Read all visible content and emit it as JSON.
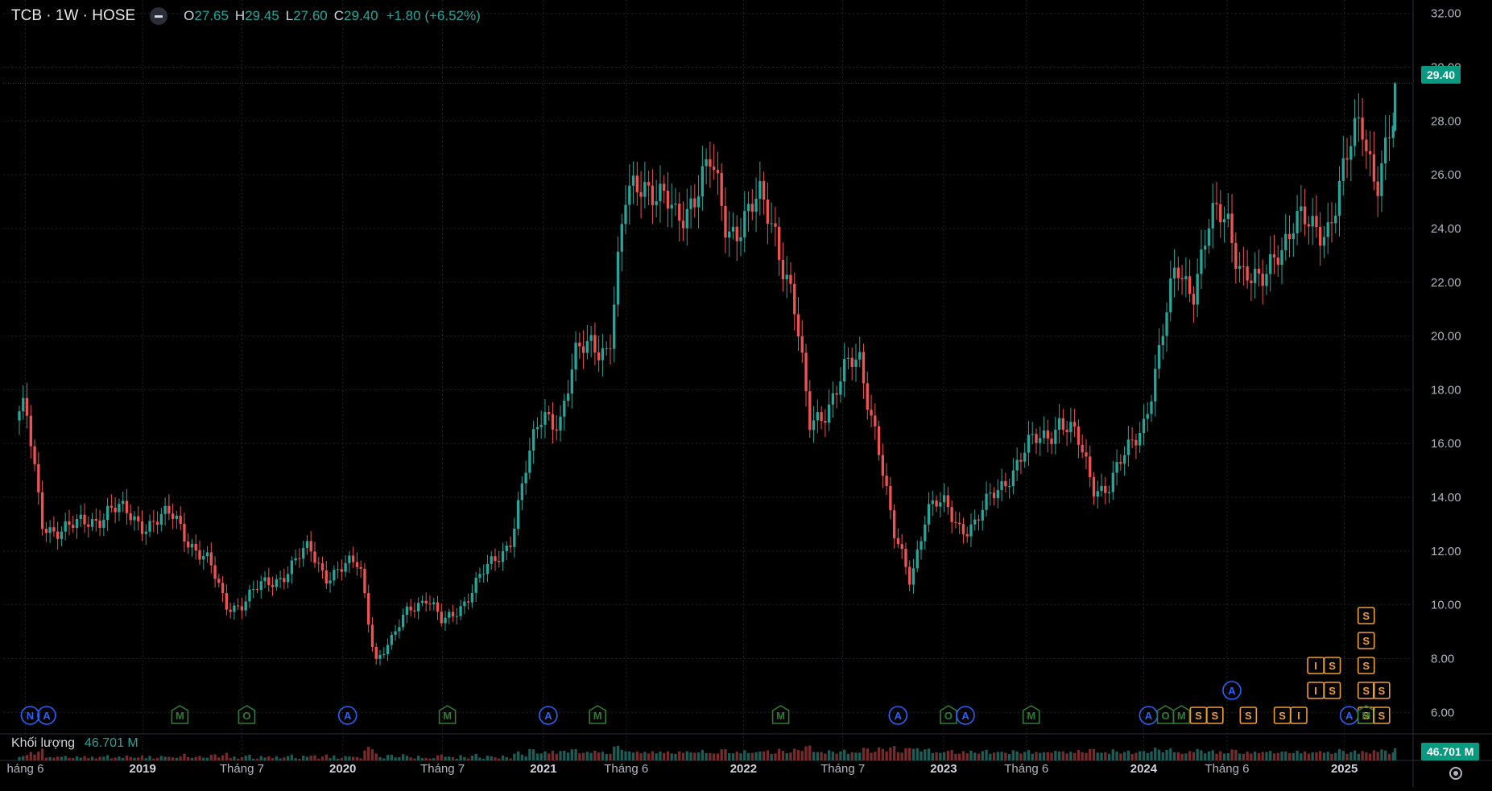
{
  "header": {
    "symbol": "TCB · 1W · HOSE",
    "o_label": "O",
    "o_value": "27.65",
    "h_label": "H",
    "h_value": "29.45",
    "l_label": "L",
    "l_value": "27.60",
    "c_label": "C",
    "c_value": "29.40",
    "change": "+1.80 (+6.52%)"
  },
  "volume": {
    "label": "Khối lượng",
    "value": "46.701 M"
  },
  "price_badge": "29.40",
  "volume_badge": "46.701 M",
  "colors": {
    "up": "#26a69a",
    "down": "#ef5350",
    "background": "#000000",
    "grid": "#1f2226",
    "badge": "#089981",
    "event_blue": "#2962ff",
    "event_green": "#2e7d32",
    "event_orange": "#f0a030"
  },
  "chart_data": {
    "type": "candlestick",
    "interval": "1W",
    "ylim": [
      5.2,
      32.5
    ],
    "y_ticks": [
      "6.00",
      "8.00",
      "10.00",
      "12.00",
      "14.00",
      "16.00",
      "18.00",
      "20.00",
      "22.00",
      "24.00",
      "26.00",
      "28.00",
      "30.00",
      "32.00"
    ],
    "x_ticks": [
      {
        "label": "háng 6",
        "date": "2018-06",
        "bold": false
      },
      {
        "label": "2019",
        "date": "2019-01",
        "bold": true
      },
      {
        "label": "Tháng 7",
        "date": "2019-07",
        "bold": false
      },
      {
        "label": "2020",
        "date": "2020-01",
        "bold": true
      },
      {
        "label": "Tháng 7",
        "date": "2020-07",
        "bold": false
      },
      {
        "label": "2021",
        "date": "2021-01",
        "bold": true
      },
      {
        "label": "Tháng 6",
        "date": "2021-06",
        "bold": false
      },
      {
        "label": "2022",
        "date": "2022-01",
        "bold": true
      },
      {
        "label": "Tháng 7",
        "date": "2022-07",
        "bold": false
      },
      {
        "label": "2023",
        "date": "2023-01",
        "bold": true
      },
      {
        "label": "Tháng 6",
        "date": "2023-06",
        "bold": false
      },
      {
        "label": "2024",
        "date": "2024-01",
        "bold": true
      },
      {
        "label": "Tháng 6",
        "date": "2024-06",
        "bold": false
      },
      {
        "label": "2025",
        "date": "2025-01",
        "bold": true
      }
    ],
    "price_path": [
      [
        "2018-06",
        17.2
      ],
      [
        "2018-07",
        13.0
      ],
      [
        "2018-09",
        12.8
      ],
      [
        "2018-11",
        13.6
      ],
      [
        "2018-12",
        13.3
      ],
      [
        "2019-01",
        13.1
      ],
      [
        "2019-03",
        13.2
      ],
      [
        "2019-05",
        11.5
      ],
      [
        "2019-06",
        10.0
      ],
      [
        "2019-07",
        10.1
      ],
      [
        "2019-09",
        11.0
      ],
      [
        "2019-11",
        12.0
      ],
      [
        "2019-12",
        11.2
      ],
      [
        "2020-01",
        11.3
      ],
      [
        "2020-02",
        11.5
      ],
      [
        "2020-03",
        8.0
      ],
      [
        "2020-04",
        8.6
      ],
      [
        "2020-05",
        10.0
      ],
      [
        "2020-06",
        10.3
      ],
      [
        "2020-07",
        9.2
      ],
      [
        "2020-09",
        10.8
      ],
      [
        "2020-10",
        11.5
      ],
      [
        "2020-11",
        12.5
      ],
      [
        "2020-12",
        15.0
      ],
      [
        "2021-01",
        17.2
      ],
      [
        "2021-02",
        17.0
      ],
      [
        "2021-03",
        19.0
      ],
      [
        "2021-04",
        20.0
      ],
      [
        "2021-05",
        19.5
      ],
      [
        "2021-06",
        25.0
      ],
      [
        "2021-07",
        26.2
      ],
      [
        "2021-08",
        25.0
      ],
      [
        "2021-09",
        24.2
      ],
      [
        "2021-10",
        25.5
      ],
      [
        "2021-11",
        26.2
      ],
      [
        "2021-12",
        24.0
      ],
      [
        "2022-01",
        24.5
      ],
      [
        "2022-02",
        24.8
      ],
      [
        "2022-03",
        24.0
      ],
      [
        "2022-04",
        21.5
      ],
      [
        "2022-05",
        16.5
      ],
      [
        "2022-06",
        17.5
      ],
      [
        "2022-07",
        18.5
      ],
      [
        "2022-08",
        19.0
      ],
      [
        "2022-09",
        16.5
      ],
      [
        "2022-10",
        12.5
      ],
      [
        "2022-11",
        11.0
      ],
      [
        "2022-12",
        13.6
      ],
      [
        "2023-01",
        13.6
      ],
      [
        "2023-02",
        13.0
      ],
      [
        "2023-03",
        13.0
      ],
      [
        "2023-04",
        14.0
      ],
      [
        "2023-05",
        15.0
      ],
      [
        "2023-06",
        15.7
      ],
      [
        "2023-07",
        16.2
      ],
      [
        "2023-08",
        17.0
      ],
      [
        "2023-09",
        16.0
      ],
      [
        "2023-10",
        14.5
      ],
      [
        "2023-11",
        14.5
      ],
      [
        "2023-12",
        15.5
      ],
      [
        "2024-01",
        17.0
      ],
      [
        "2024-02",
        19.5
      ],
      [
        "2024-03",
        22.5
      ],
      [
        "2024-04",
        22.0
      ],
      [
        "2024-05",
        24.0
      ],
      [
        "2024-06",
        24.5
      ],
      [
        "2024-07",
        22.5
      ],
      [
        "2024-08",
        21.5
      ],
      [
        "2024-09",
        23.5
      ],
      [
        "2024-10",
        24.2
      ],
      [
        "2024-11",
        23.8
      ],
      [
        "2024-12",
        24.3
      ],
      [
        "2025-01",
        26.0
      ],
      [
        "2025-02",
        28.0
      ],
      [
        "2025-03",
        26.0
      ],
      [
        "2025-04",
        27.65
      ]
    ],
    "last_candle": {
      "open": 27.65,
      "high": 29.45,
      "low": 27.6,
      "close": 29.4
    },
    "events": [
      {
        "date": "2018-06",
        "letter": "N",
        "kind": "blue",
        "stack": [
          1
        ]
      },
      {
        "date": "2018-07",
        "letter": "A",
        "kind": "blue",
        "stack": [
          1
        ]
      },
      {
        "date": "2019-03",
        "letter": "M",
        "kind": "green",
        "stack": [
          1
        ]
      },
      {
        "date": "2019-07",
        "letter": "O",
        "kind": "green",
        "stack": [
          1
        ]
      },
      {
        "date": "2020-01",
        "letter": "A",
        "kind": "blue",
        "stack": [
          1
        ]
      },
      {
        "date": "2020-07",
        "letter": "M",
        "kind": "green",
        "stack": [
          1
        ]
      },
      {
        "date": "2021-01",
        "letter": "A",
        "kind": "blue",
        "stack": [
          1
        ]
      },
      {
        "date": "2021-04",
        "letter": "M",
        "kind": "green",
        "stack": [
          1
        ]
      },
      {
        "date": "2022-03",
        "letter": "M",
        "kind": "green",
        "stack": [
          1
        ]
      },
      {
        "date": "2022-10",
        "letter": "A",
        "kind": "blue",
        "stack": [
          1
        ]
      },
      {
        "date": "2023-01",
        "letter": "O",
        "kind": "green",
        "stack": [
          1
        ]
      },
      {
        "date": "2023-02",
        "letter": "A",
        "kind": "blue",
        "stack": [
          1
        ]
      },
      {
        "date": "2023-06",
        "letter": "M",
        "kind": "green",
        "stack": [
          1
        ]
      },
      {
        "date": "2024-01",
        "letter": "A",
        "kind": "blue",
        "stack": [
          1
        ]
      },
      {
        "date": "2024-02",
        "letter": "O",
        "kind": "green",
        "stack": [
          1
        ]
      },
      {
        "date": "2024-03",
        "letter": "M",
        "kind": "green",
        "stack": [
          1
        ]
      },
      {
        "date": "2024-04",
        "letter": "S",
        "kind": "orange",
        "stack": [
          1
        ]
      },
      {
        "date": "2024-05",
        "letter": "S",
        "kind": "orange",
        "stack": [
          1
        ]
      },
      {
        "date": "2024-06",
        "letter": "A",
        "kind": "blue",
        "stack": [
          2
        ]
      },
      {
        "date": "2024-07",
        "letter": "S",
        "kind": "orange",
        "stack": [
          1
        ]
      },
      {
        "date": "2024-09",
        "letter": "S",
        "kind": "orange",
        "stack": [
          1
        ]
      },
      {
        "date": "2024-10",
        "letter": "I",
        "kind": "orange",
        "stack": [
          1
        ]
      },
      {
        "date": "2024-11",
        "letter": "I",
        "kind": "orange",
        "stack": [
          2,
          3
        ]
      },
      {
        "date": "2024-12",
        "letter": "S",
        "kind": "orange",
        "stack": [
          2,
          3
        ]
      },
      {
        "date": "2025-01",
        "letter": "A",
        "kind": "blue",
        "stack": [
          1
        ]
      },
      {
        "date": "2025-02",
        "letter": "S",
        "kind": "orange",
        "stack": [
          1,
          2,
          3,
          4,
          5
        ]
      },
      {
        "date": "2025-02",
        "letter": "M",
        "kind": "green",
        "stack": [
          1
        ]
      },
      {
        "date": "2025-03",
        "letter": "S",
        "kind": "orange",
        "stack": [
          1,
          2
        ]
      }
    ]
  }
}
